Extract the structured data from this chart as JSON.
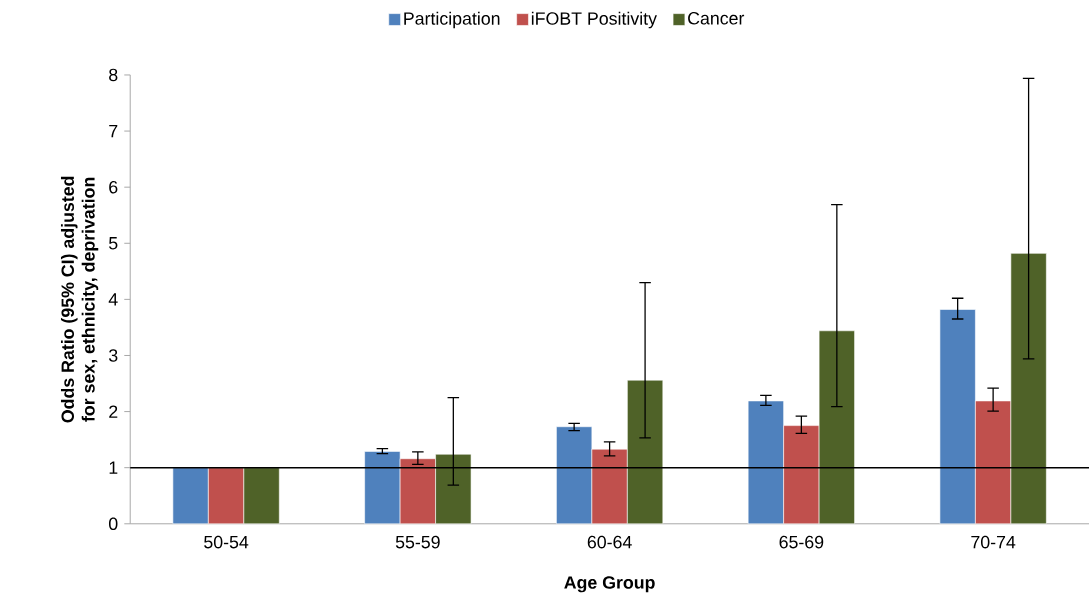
{
  "chart_data": {
    "type": "bar",
    "xlabel": "Age Group",
    "ylabel": "Odds Ratio (95% CI) adjusted for sex, ethnicity, deprivation",
    "categories": [
      "50-54",
      "55-59",
      "60-64",
      "65-69",
      "70-74"
    ],
    "series": [
      {
        "name": "Participation",
        "color": "#4f81bd",
        "values": [
          1,
          1.29,
          1.73,
          2.19,
          3.82
        ],
        "errors": [
          null,
          [
            1.25,
            1.34
          ],
          [
            1.66,
            1.79
          ],
          [
            2.11,
            2.29
          ],
          [
            3.65,
            4.02
          ]
        ]
      },
      {
        "name": "iFOBT Positivity",
        "color": "#c0504d",
        "values": [
          1,
          1.16,
          1.33,
          1.75,
          2.19
        ],
        "errors": [
          null,
          [
            1.06,
            1.28
          ],
          [
            1.21,
            1.46
          ],
          [
            1.61,
            1.92
          ],
          [
            2.01,
            2.42
          ]
        ]
      },
      {
        "name": "Cancer",
        "color": "#4f6228",
        "values": [
          1,
          1.24,
          2.56,
          3.44,
          4.82
        ],
        "errors": [
          null,
          [
            0.69,
            2.25
          ],
          [
            1.53,
            4.3
          ],
          [
            2.09,
            5.69
          ],
          [
            2.94,
            7.94
          ]
        ]
      }
    ],
    "ylim": [
      0,
      8
    ],
    "yticks": [
      0,
      1,
      2,
      3,
      4,
      5,
      6,
      7,
      8
    ],
    "ref_lines": [
      {
        "axis": "y",
        "value": 1,
        "color": "#000000"
      }
    ],
    "legend": "top",
    "grid": false
  }
}
